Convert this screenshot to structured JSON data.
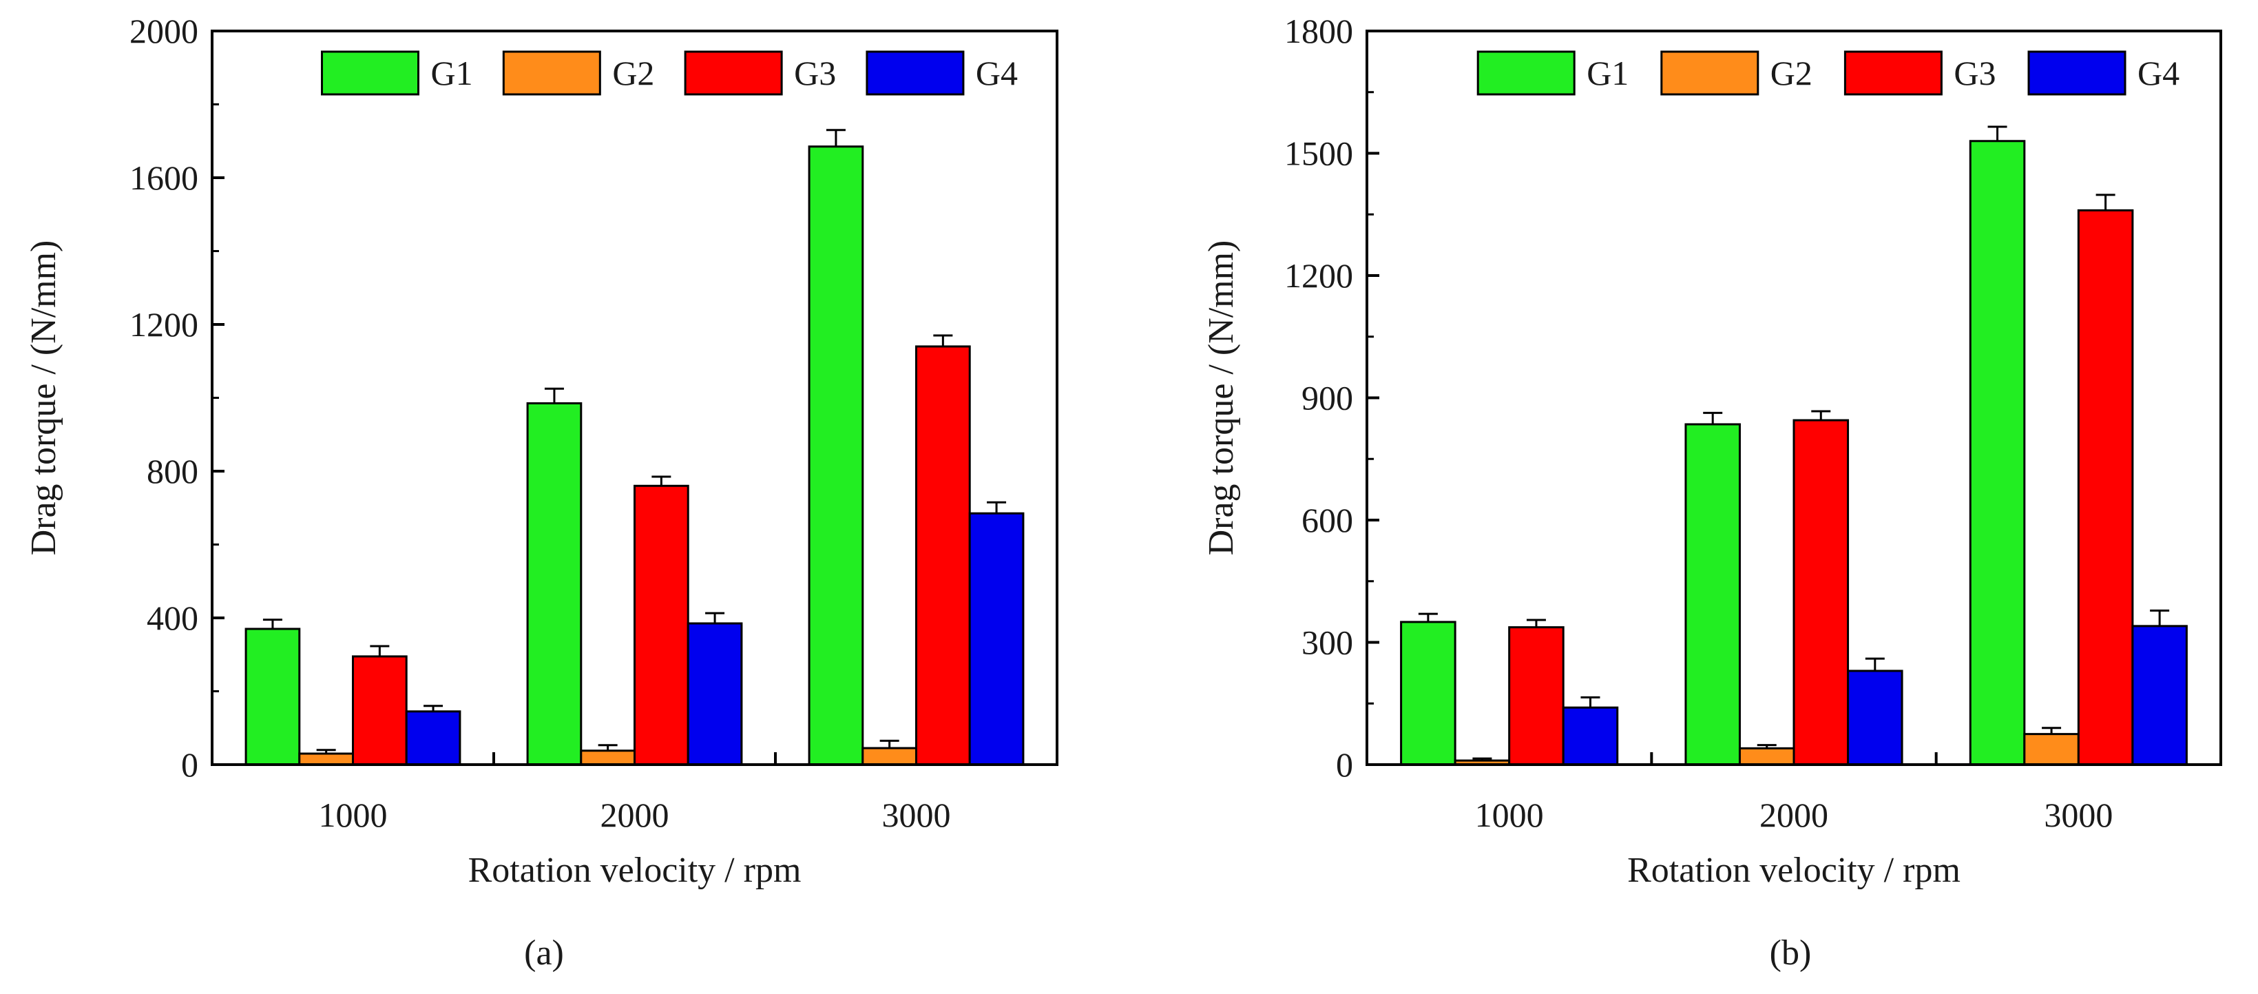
{
  "chart_data": [
    {
      "type": "bar",
      "panel_label": "(a)",
      "xlabel": "Rotation velocity / rpm",
      "ylabel": "Drag torque / (N/mm)",
      "categories": [
        "1000",
        "2000",
        "3000"
      ],
      "ylim": [
        0,
        2000
      ],
      "yticks": [
        0,
        400,
        800,
        1200,
        1600,
        2000
      ],
      "legend_position": "top",
      "series": [
        {
          "name": "G1",
          "color": "#22ee22",
          "values": [
            370,
            985,
            1685
          ],
          "errors": [
            25,
            40,
            45
          ]
        },
        {
          "name": "G2",
          "color": "#ff8c1a",
          "values": [
            30,
            38,
            45
          ],
          "errors": [
            10,
            15,
            20
          ]
        },
        {
          "name": "G3",
          "color": "#ff0000",
          "values": [
            295,
            760,
            1140
          ],
          "errors": [
            28,
            25,
            30
          ]
        },
        {
          "name": "G4",
          "color": "#0000ee",
          "values": [
            145,
            385,
            685
          ],
          "errors": [
            15,
            28,
            30
          ]
        }
      ]
    },
    {
      "type": "bar",
      "panel_label": "(b)",
      "xlabel": "Rotation velocity / rpm",
      "ylabel": "Drag torque / (N/mm)",
      "categories": [
        "1000",
        "2000",
        "3000"
      ],
      "ylim": [
        0,
        1800
      ],
      "yticks": [
        0,
        300,
        600,
        900,
        1200,
        1500,
        1800
      ],
      "legend_position": "top",
      "series": [
        {
          "name": "G1",
          "color": "#22ee22",
          "values": [
            350,
            835,
            1530
          ],
          "errors": [
            20,
            28,
            35
          ]
        },
        {
          "name": "G2",
          "color": "#ff8c1a",
          "values": [
            10,
            40,
            75
          ],
          "errors": [
            5,
            8,
            15
          ]
        },
        {
          "name": "G3",
          "color": "#ff0000",
          "values": [
            337,
            845,
            1360
          ],
          "errors": [
            18,
            22,
            38
          ]
        },
        {
          "name": "G4",
          "color": "#0000ee",
          "values": [
            140,
            230,
            340
          ],
          "errors": [
            25,
            30,
            38
          ]
        }
      ]
    }
  ]
}
